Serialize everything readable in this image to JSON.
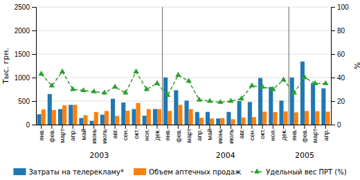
{
  "chart_data": {
    "type": "bar",
    "categories": [
      "янв.",
      "фев.",
      "март",
      "апр.",
      "май",
      "июнь",
      "июль",
      "авг.",
      "сен.",
      "окт.",
      "ноя.",
      "дек.",
      "янв.",
      "фев.",
      "март",
      "апр.",
      "май",
      "июнь",
      "июль",
      "авг.",
      "сен.",
      "окт.",
      "ноя.",
      "дек.",
      "янв.",
      "фев.",
      "март",
      "апр."
    ],
    "series": [
      {
        "name": "Затраты на телерекламу*",
        "type": "bar",
        "values": [
          220,
          650,
          330,
          420,
          140,
          80,
          210,
          550,
          470,
          330,
          190,
          330,
          1000,
          730,
          510,
          270,
          270,
          130,
          270,
          500,
          480,
          990,
          800,
          510,
          1000,
          1340,
          880,
          770
        ]
      },
      {
        "name": "Объем аптечных продаж",
        "type": "bar",
        "values": [
          320,
          310,
          410,
          420,
          200,
          265,
          290,
          185,
          295,
          460,
          330,
          330,
          290,
          420,
          330,
          145,
          130,
          140,
          115,
          150,
          160,
          275,
          265,
          280,
          260,
          290,
          285,
          275
        ]
      },
      {
        "name": "Удельный вес ПРТ (%)",
        "type": "line",
        "axis": "y2",
        "marker": "triangle",
        "line_style": "dashed",
        "values": [
          43,
          33,
          45,
          30,
          29,
          28,
          27,
          32,
          27,
          45,
          30,
          35,
          25,
          42,
          37,
          21,
          20,
          19,
          20,
          22,
          33,
          32,
          30,
          38,
          27,
          40,
          35,
          35
        ]
      }
    ],
    "ylabel": "Тыс. грн.",
    "y2label": "%",
    "ylim": [
      0,
      2500
    ],
    "yticks": [
      0,
      500,
      1000,
      1500,
      2000,
      2500
    ],
    "y2lim": [
      0,
      100
    ],
    "y2ticks": [
      0,
      20,
      40,
      60,
      80,
      100
    ],
    "grid": true,
    "legend": "bottom",
    "dividers": [
      11.5,
      23.5
    ],
    "annotations": [
      {
        "text": "2003",
        "x": 5.5
      },
      {
        "text": "2004",
        "x": 17.5
      },
      {
        "text": "2005",
        "x": 25.0
      }
    ]
  }
}
